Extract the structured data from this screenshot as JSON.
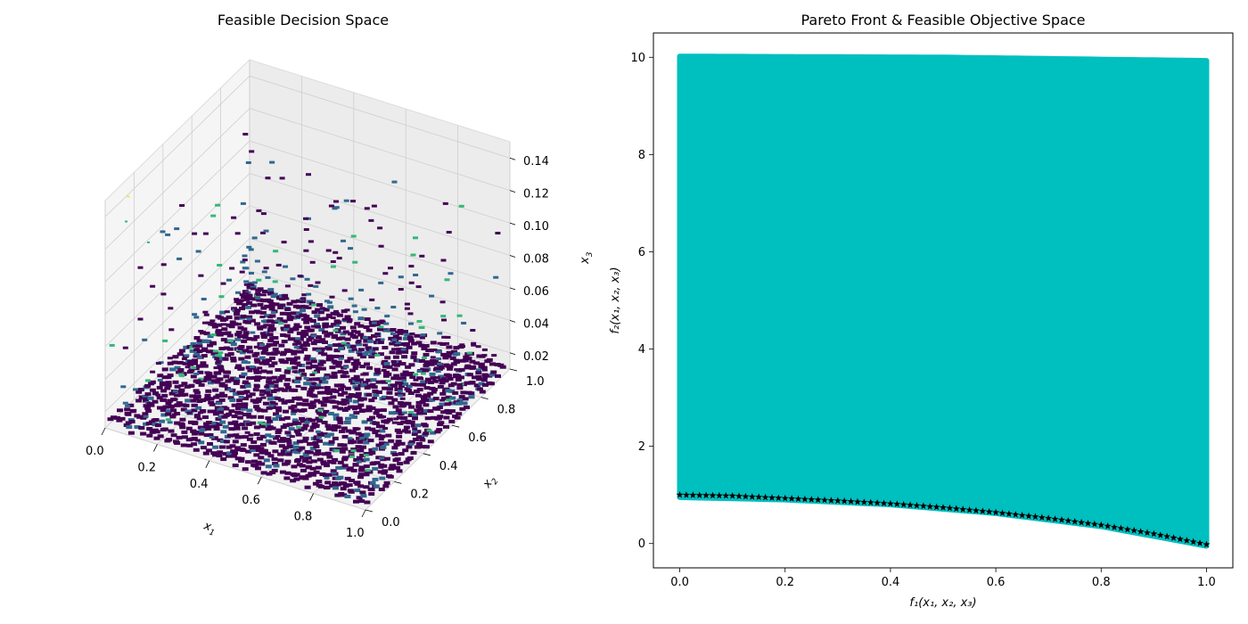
{
  "chart_data": [
    {
      "type": "scatter3d",
      "title": "Feasible Decision Space",
      "x_axis": {
        "label": "x",
        "label_sub": "1",
        "ticks": [
          "0.0",
          "0.2",
          "0.4",
          "0.6",
          "0.8",
          "1.0"
        ],
        "range": [
          0,
          1
        ]
      },
      "y_axis": {
        "label": "x",
        "label_sub": "2",
        "ticks": [
          "0.0",
          "0.2",
          "0.4",
          "0.6",
          "0.8",
          "1.0"
        ],
        "range": [
          0,
          1
        ]
      },
      "z_axis": {
        "label": "x",
        "label_sub": "3",
        "ticks": [
          "0.02",
          "0.04",
          "0.06",
          "0.08",
          "0.10",
          "0.12",
          "0.14"
        ],
        "range": [
          0.01,
          0.15
        ]
      },
      "grid": true,
      "colormap": "viridis",
      "colors": {
        "low": "#440154",
        "mid": "#31688e",
        "high": "#35b779",
        "top": "#fde725"
      }
    },
    {
      "type": "scatter",
      "title": "Pareto Front & Feasible Objective Space",
      "xlabel": "f₁(x₁, x₂, x₃)",
      "ylabel": "f₂(x₁, x₂, x₃)",
      "x_ticks": [
        "0.0",
        "0.2",
        "0.4",
        "0.6",
        "0.8",
        "1.0"
      ],
      "y_ticks": [
        "0",
        "2",
        "4",
        "6",
        "8",
        "10"
      ],
      "xlim": [
        -0.05,
        1.05
      ],
      "ylim": [
        -0.5,
        10.5
      ],
      "series": [
        {
          "marker": "circle",
          "color": "#00bfbf",
          "region": {
            "x_range": [
              0,
              1
            ],
            "upper": [
              [
                0,
                10.02
              ],
              [
                0.5,
                10.0
              ],
              [
                1,
                9.93
              ]
            ],
            "lower": [
              [
                0,
                0.95
              ],
              [
                0.2,
                0.9
              ],
              [
                0.4,
                0.8
              ],
              [
                0.6,
                0.62
              ],
              [
                0.8,
                0.35
              ],
              [
                1,
                -0.05
              ]
            ]
          }
        },
        {
          "marker": "star",
          "color": "#000000",
          "points": [
            [
              0,
              1.0
            ],
            [
              0.1,
              0.98
            ],
            [
              0.2,
              0.93
            ],
            [
              0.3,
              0.88
            ],
            [
              0.4,
              0.82
            ],
            [
              0.5,
              0.74
            ],
            [
              0.6,
              0.64
            ],
            [
              0.7,
              0.52
            ],
            [
              0.8,
              0.38
            ],
            [
              0.9,
              0.2
            ],
            [
              1.0,
              -0.02
            ]
          ]
        }
      ]
    }
  ]
}
